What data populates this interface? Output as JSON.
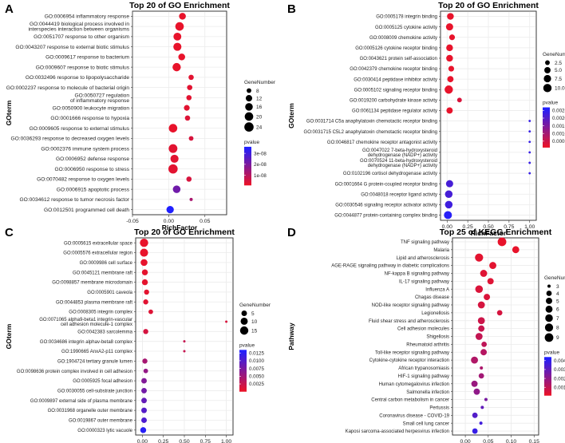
{
  "chart_data": [
    {
      "panel_label": "A",
      "type": "scatter",
      "title": "Top 20 of GO Enrichment",
      "xlabel": "RichFactor",
      "ylabel": "GOterm",
      "xlim": [
        -0.05,
        0.08
      ],
      "xticks": [
        -0.05,
        0.0,
        0.05
      ],
      "xtick_labels": [
        "-0.05",
        "0.00",
        "0.05"
      ],
      "categories": [
        "GO:0006954 inflammatory response",
        "GO:0044419 biological process involved in interspecies interaction between organisms",
        "GO:0051707 response to other organism",
        "GO:0043207 response to external biotic stimulus",
        "GO:0009617 response to bacterium",
        "GO:0009607 response to biotic stimulus",
        "GO:0032496 response to lipopolysaccharide",
        "GO:0002237 response to molecule of bacterial origin",
        "GO:0050727 regulation of inflammatory response",
        "GO:0050900 leukocyte migration",
        "GO:0001666 response to hypoxia",
        "GO:0009605 response to external stimulus",
        "GO:0036293 response to decreased oxygen levels",
        "GO:0002376 immune system process",
        "GO:0006952 defense response",
        "GO:0006950 response to stress",
        "GO:0070482 response to oxygen levels",
        "GO:0006915 apoptotic process",
        "GO:0034612 response to tumor necrosis factor",
        "GO:0012501 programmed cell death"
      ],
      "x": [
        0.019,
        0.015,
        0.012,
        0.012,
        0.018,
        0.011,
        0.031,
        0.029,
        0.028,
        0.025,
        0.026,
        0.006,
        0.031,
        0.006,
        0.008,
        0.006,
        0.028,
        0.011,
        0.031,
        0.002
      ],
      "size": [
        13,
        20,
        17,
        18,
        13,
        19,
        9,
        9,
        9,
        10,
        9,
        20,
        8,
        21,
        18,
        24,
        9,
        16,
        7,
        15
      ],
      "pvalue": [
        1e-09,
        1e-09,
        1e-09,
        1e-09,
        1e-09,
        1e-09,
        2e-09,
        2e-09,
        2e-09,
        2e-09,
        3e-09,
        1e-09,
        4e-09,
        2e-09,
        2e-09,
        2e-09,
        4e-09,
        2.2e-08,
        1.2e-08,
        3.6e-08
      ],
      "legend_size_title": "GeneNumber",
      "legend_sizes": [
        8,
        12,
        16,
        20,
        24
      ],
      "legend_size_labels": [
        "8",
        "12",
        "16",
        "20",
        "24"
      ],
      "legend_color_title": "pvalue",
      "color_range": [
        1e-09,
        3.6e-08
      ],
      "legend_color_ticks": [
        1e-08,
        2e-08,
        3e-08
      ],
      "legend_color_labels": [
        "1e-08",
        "2e-08",
        "3e-08"
      ]
    },
    {
      "panel_label": "B",
      "type": "scatter",
      "title": "Top 20 of GO Enrichment",
      "xlabel": "RichFactor",
      "ylabel": "GOterm",
      "xlim": [
        -0.08,
        1.08
      ],
      "xticks": [
        0.0,
        0.25,
        0.5,
        0.75,
        1.0
      ],
      "xtick_labels": [
        "0.00",
        "0.25",
        "0.50",
        "0.75",
        "1.00"
      ],
      "categories": [
        "GO:0005178 integrin binding",
        "GO:0005125 cytokine activity",
        "GO:0008009 chemokine activity",
        "GO:0005126 cytokine receptor binding",
        "GO:0043621 protein self-association",
        "GO:0042379 chemokine receptor binding",
        "GO:0030414 peptidase inhibitor activity",
        "GO:0005102 signaling receptor binding",
        "GO:0019200 carbohydrate kinase activity",
        "GO:0061134 peptidase regulator activity",
        "GO:0031714 C5a anaphylatoxin chemotactic receptor binding",
        "GO:0031715 C5L2 anaphylatoxin chemotactic receptor binding",
        "GO:0046817 chemokine receptor antagonist activity",
        "GO:0047022 7-beta-hydroxysteroid dehydrogenase (NADP+) activity",
        "GO:0070524 11-beta-hydroxysteroid dehydrogenase (NADP+) activity",
        "GO:0102196 cortisol dehydrogenase activity",
        "GO:0001664 G protein-coupled receptor binding",
        "GO:0048018 receptor ligand activity",
        "GO:0030546 signaling receptor activator activity",
        "GO:0044877 protein-containing complex binding"
      ],
      "x": [
        0.04,
        0.03,
        0.06,
        0.03,
        0.03,
        0.05,
        0.04,
        0.02,
        0.15,
        0.03,
        1.0,
        1.0,
        1.0,
        1.0,
        1.0,
        1.0,
        0.03,
        0.02,
        0.02,
        0.01
      ],
      "size": [
        6,
        7,
        4,
        6,
        6,
        4,
        5,
        10,
        2.5,
        5,
        1,
        1,
        1,
        1,
        1,
        1,
        7,
        8,
        8,
        9
      ],
      "pvalue": [
        0.0001,
        0.0001,
        0.0001,
        0.0001,
        0.0001,
        0.0001,
        0.0001,
        0.0001,
        0.0003,
        0.0001,
        0.0024,
        0.0024,
        0.0024,
        0.0024,
        0.0024,
        0.0024,
        0.0022,
        0.0022,
        0.0023,
        0.0026
      ],
      "legend_size_title": "GeneNumber",
      "legend_sizes": [
        2.5,
        5.0,
        7.5,
        10.0
      ],
      "legend_size_labels": [
        "2.5",
        "5.0",
        "7.5",
        "10.0"
      ],
      "legend_color_title": "pvalue",
      "color_range": [
        0.0001,
        0.0027
      ],
      "legend_color_ticks": [
        0.0005,
        0.001,
        0.0015,
        0.002,
        0.0025
      ],
      "legend_color_labels": [
        "0.0005",
        "0.0010",
        "0.0015",
        "0.0020",
        "0.0025"
      ]
    },
    {
      "panel_label": "C",
      "type": "scatter",
      "title": "Top 20 of GO Enrichment",
      "xlabel": "RichFactor",
      "ylabel": "GOterm",
      "xlim": [
        -0.08,
        1.08
      ],
      "xticks": [
        0.0,
        0.25,
        0.5,
        0.75,
        1.0
      ],
      "xtick_labels": [
        "0.00",
        "0.25",
        "0.50",
        "0.75",
        "1.00"
      ],
      "categories": [
        "GO:0005615 extracellular space",
        "GO:0005576 extracellular region",
        "GO:0009986 cell surface",
        "GO:0045121 membrane raft",
        "GO:0098857 membrane microdomain",
        "GO:0005901 caveola",
        "GO:0044853 plasma membrane raft",
        "GO:0008305 integrin complex",
        "GO:0071065 alpha9-beta1 integrin-vascular cell adhesion molecule-1 complex",
        "GO:0042383 sarcolemma",
        "GO:0034686 integrin alphav-beta8 complex",
        "GO:1990665 AnxA2-p11 complex",
        "GO:1904724 tertiary granule lumen",
        "GO:0098636 protein complex involved in cell adhesion",
        "GO:0005925 focal adhesion",
        "GO:0030055 cell-substrate junction",
        "GO:0009897 external side of plasma membrane",
        "GO:0031968 organelle outer membrane",
        "GO:0019867 outer membrane",
        "GO:0000323 lytic vacuole"
      ],
      "x": [
        0.02,
        0.02,
        0.02,
        0.03,
        0.03,
        0.05,
        0.04,
        0.1,
        1.0,
        0.04,
        0.5,
        0.5,
        0.03,
        0.04,
        0.02,
        0.02,
        0.02,
        0.02,
        0.02,
        0.01
      ],
      "size": [
        15,
        14,
        9,
        6,
        6,
        4,
        4,
        3,
        1,
        4,
        1,
        1,
        4,
        3,
        5,
        5,
        5,
        5,
        5,
        6
      ],
      "pvalue": [
        0.0001,
        0.0001,
        0.0002,
        0.0003,
        0.0003,
        0.0004,
        0.0006,
        0.0008,
        0.0012,
        0.0014,
        0.0024,
        0.0024,
        0.0045,
        0.0058,
        0.007,
        0.008,
        0.009,
        0.01,
        0.0105,
        0.013
      ],
      "legend_size_title": "GeneNumber",
      "legend_sizes": [
        5,
        10,
        15
      ],
      "legend_size_labels": [
        "5",
        "10",
        "15"
      ],
      "legend_color_title": "pvalue",
      "color_range": [
        0.0001,
        0.0135
      ],
      "legend_color_ticks": [
        0.0025,
        0.005,
        0.0075,
        0.01,
        0.0125
      ],
      "legend_color_labels": [
        "0.0025",
        "0.0050",
        "0.0075",
        "0.0100",
        "0.0125"
      ]
    },
    {
      "panel_label": "D",
      "type": "scatter",
      "title": "Top 25 of KEGG Enrichment",
      "xlabel": "RichFactor",
      "ylabel": "Pathway",
      "xlim": [
        -0.028,
        0.16
      ],
      "xticks": [
        0.0,
        0.05,
        0.1,
        0.15
      ],
      "xtick_labels": [
        "0.00",
        "0.05",
        "0.10",
        "0.15"
      ],
      "categories": [
        "TNF signaling pathway",
        "Malaria",
        "Lipid and atherosclerosis",
        "AGE-RAGE signaling pathway in diabetic complications",
        "NF-kappa B signaling pathway",
        "IL-17 signaling pathway",
        "Influenza A",
        "Chagas disease",
        "NOD-like receptor signaling pathway",
        "Legionellosis",
        "Fluid shear stress and atherosclerosis",
        "Cell adhesion molecules",
        "Shigellosis",
        "Rheumatoid arthritis",
        "Toll-like receptor signaling pathway",
        "Cytokine-cytokine receptor interaction",
        "African trypanosomiasis",
        "HIF-1 signaling pathway",
        "Human cytomegalovirus infection",
        "Salmonella infection",
        "Central carbon metabolism in cancer",
        "Pertussis",
        "Coronavirus disease - COVID-19",
        "Small cell lung cancer",
        "Kaposi sarcoma-associated herpesvirus infection"
      ],
      "x": [
        0.08,
        0.11,
        0.03,
        0.06,
        0.04,
        0.055,
        0.03,
        0.047,
        0.035,
        0.075,
        0.035,
        0.035,
        0.03,
        0.041,
        0.04,
        0.02,
        0.035,
        0.035,
        0.02,
        0.025,
        0.045,
        0.037,
        0.021,
        0.034,
        0.021
      ],
      "size": [
        9,
        6,
        8,
        6,
        6,
        5,
        7,
        5,
        6,
        4,
        6,
        5,
        6,
        4,
        5,
        6,
        3,
        4,
        5,
        5,
        3,
        3,
        4,
        3,
        4
      ],
      "pvalue": [
        0.0001,
        0.0001,
        0.0002,
        0.0002,
        0.0003,
        0.0003,
        0.0004,
        0.0004,
        0.0005,
        0.0005,
        0.0007,
        0.0008,
        0.0009,
        0.001,
        0.0012,
        0.0013,
        0.0014,
        0.0016,
        0.0018,
        0.002,
        0.0025,
        0.003,
        0.0033,
        0.0037,
        0.0039
      ],
      "legend_size_title": "GeneNumber",
      "legend_sizes": [
        3,
        4,
        5,
        6,
        7,
        8,
        9
      ],
      "legend_size_labels": [
        "3",
        "4",
        "5",
        "6",
        "7",
        "8",
        "9"
      ],
      "legend_color_title": "pvalue",
      "color_range": [
        0.0001,
        0.0044
      ],
      "legend_color_ticks": [
        0.001,
        0.002,
        0.003,
        0.004
      ],
      "legend_color_labels": [
        "0.001",
        "0.002",
        "0.003",
        "0.004"
      ]
    }
  ],
  "colors": {
    "low_pvalue": "#e8132b",
    "high_pvalue": "#2020ff",
    "grid": "#ebebeb",
    "axis": "#333333"
  }
}
